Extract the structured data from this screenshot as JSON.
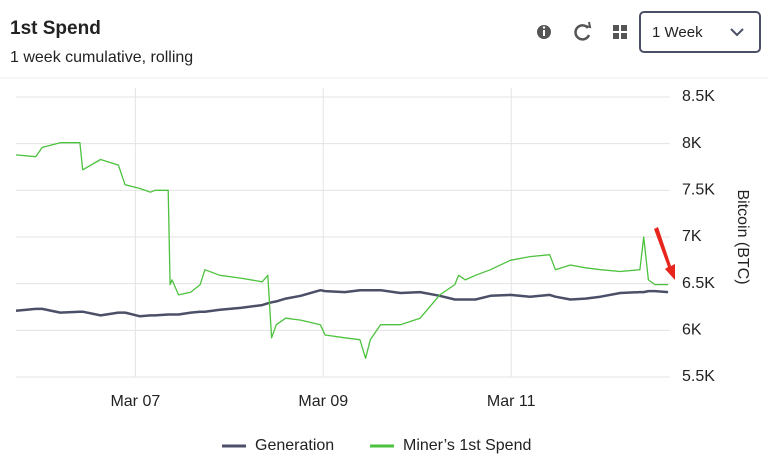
{
  "header": {
    "title": "1st Spend",
    "subtitle": "1 week cumulative, rolling"
  },
  "controls": {
    "range": "1 Week"
  },
  "chart_data": {
    "type": "line",
    "y_label": "Bitcoin (BTC)",
    "x": [
      5.73,
      5.94,
      6.01,
      6.2,
      6.41,
      6.44,
      6.63,
      6.82,
      6.89,
      7.05,
      7.16,
      7.21,
      7.35,
      7.37,
      7.39,
      7.46,
      7.59,
      7.69,
      7.74,
      7.9,
      8.12,
      8.35,
      8.41,
      8.45,
      8.5,
      8.6,
      8.76,
      8.97,
      9.02,
      9.23,
      9.39,
      9.45,
      9.5,
      9.61,
      9.82,
      10.03,
      10.24,
      10.4,
      10.44,
      10.51,
      10.62,
      10.78,
      10.99,
      11.2,
      11.41,
      11.47,
      11.63,
      11.79,
      11.95,
      12.16,
      12.37,
      12.41,
      12.46,
      12.53,
      12.67
    ],
    "xlim": [
      5.73,
      12.69
    ],
    "xticks": [
      {
        "value": 7,
        "label": "Mar 07"
      },
      {
        "value": 9,
        "label": "Mar 09"
      },
      {
        "value": 11,
        "label": "Mar 11"
      }
    ],
    "ylim": [
      5500,
      8500
    ],
    "yticks": [
      {
        "value": 5500,
        "label": "5.5K"
      },
      {
        "value": 6000,
        "label": "6K"
      },
      {
        "value": 6500,
        "label": "6.5K"
      },
      {
        "value": 7000,
        "label": "7K"
      },
      {
        "value": 7500,
        "label": "7.5K"
      },
      {
        "value": 8000,
        "label": "8K"
      },
      {
        "value": 8500,
        "label": "8.5K"
      }
    ],
    "grid": true,
    "legend": "bottom",
    "series": [
      {
        "name": "Generation",
        "color": "#4b5068",
        "values": [
          6210,
          6230,
          6230,
          6190,
          6200,
          6200,
          6160,
          6190,
          6190,
          6150,
          6160,
          6160,
          6170,
          6170,
          6170,
          6170,
          6190,
          6200,
          6200,
          6220,
          6240,
          6270,
          6290,
          6300,
          6310,
          6340,
          6370,
          6430,
          6420,
          6410,
          6430,
          6430,
          6430,
          6430,
          6400,
          6410,
          6370,
          6330,
          6330,
          6330,
          6330,
          6370,
          6380,
          6360,
          6380,
          6360,
          6330,
          6340,
          6360,
          6400,
          6410,
          6410,
          6420,
          6420,
          6410
        ]
      },
      {
        "name": "Miner’s 1st Spend",
        "color": "#4cc23e",
        "values": [
          7880,
          7860,
          7960,
          8010,
          8010,
          7720,
          7830,
          7770,
          7560,
          7520,
          7480,
          7500,
          7500,
          6490,
          6540,
          6380,
          6410,
          6490,
          6650,
          6590,
          6560,
          6520,
          6590,
          5920,
          6060,
          6130,
          6110,
          6060,
          5950,
          5920,
          5900,
          5700,
          5900,
          6060,
          6060,
          6130,
          6380,
          6490,
          6590,
          6540,
          6590,
          6650,
          6750,
          6790,
          6810,
          6650,
          6700,
          6670,
          6650,
          6630,
          6650,
          7000,
          6540,
          6490,
          6490
        ]
      }
    ]
  }
}
